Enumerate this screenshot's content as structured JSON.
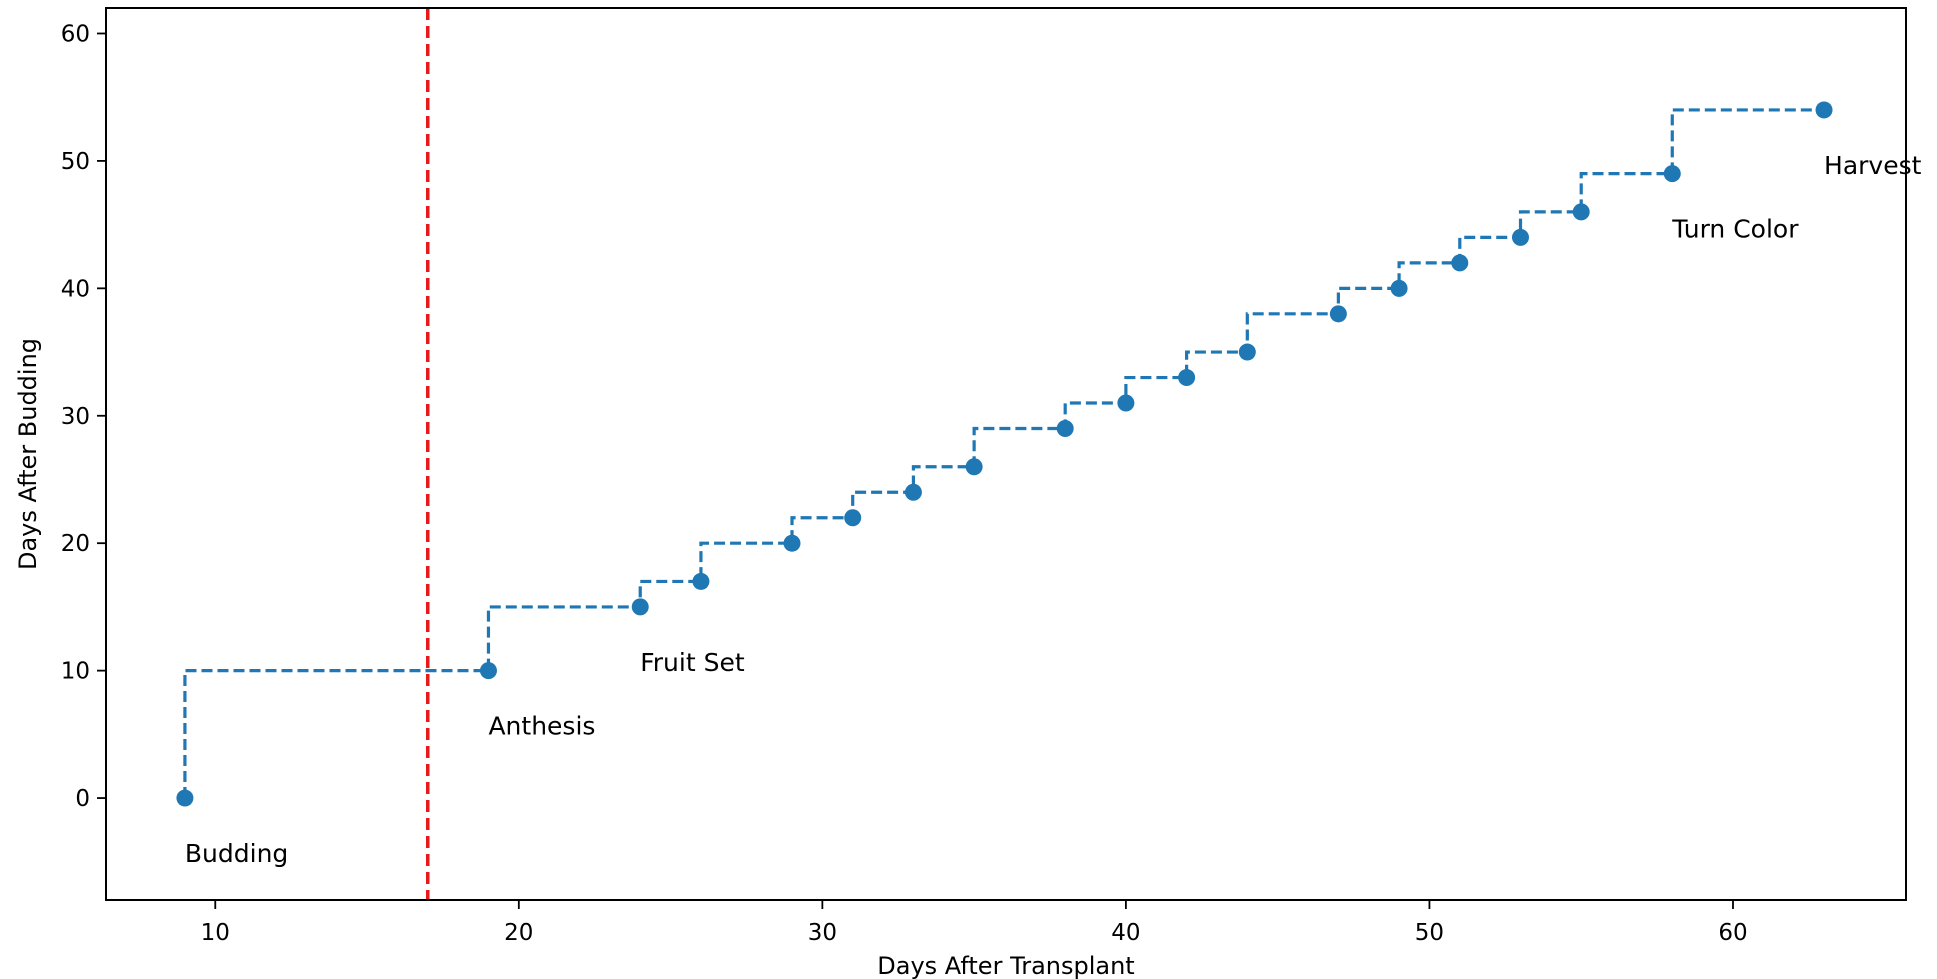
{
  "chart_data": {
    "type": "line",
    "title": "",
    "xlabel": "Days After Transplant",
    "ylabel": "Days After Budding",
    "xlim": [
      6.4,
      65.7
    ],
    "ylim": [
      -8,
      62
    ],
    "xticks": [
      10,
      20,
      30,
      40,
      50,
      60
    ],
    "yticks": [
      0,
      10,
      20,
      30,
      40,
      50,
      60
    ],
    "grid": false,
    "legend": "none",
    "step": "post",
    "series": [
      {
        "color": "#1f77b4",
        "line_style": "dashed",
        "marker": "circle",
        "x": [
          9,
          19,
          24,
          26,
          29,
          31,
          33,
          35,
          38,
          40,
          42,
          44,
          47,
          49,
          51,
          53,
          55,
          58,
          63
        ],
        "y": [
          0,
          10,
          15,
          17,
          20,
          22,
          24,
          26,
          29,
          31,
          33,
          35,
          38,
          40,
          42,
          44,
          46,
          49,
          54
        ]
      }
    ],
    "annotations": [
      {
        "text": "Budding",
        "x": 9,
        "y": 0
      },
      {
        "text": "Anthesis",
        "x": 19,
        "y": 10
      },
      {
        "text": "Fruit Set",
        "x": 24,
        "y": 15
      },
      {
        "text": "Turn Color",
        "x": 58,
        "y": 49
      },
      {
        "text": "Harvest",
        "x": 63,
        "y": 54
      }
    ],
    "reference_lines": [
      {
        "orientation": "vertical",
        "x": 17,
        "color": "#e8191b",
        "line_style": "dashed"
      }
    ]
  }
}
